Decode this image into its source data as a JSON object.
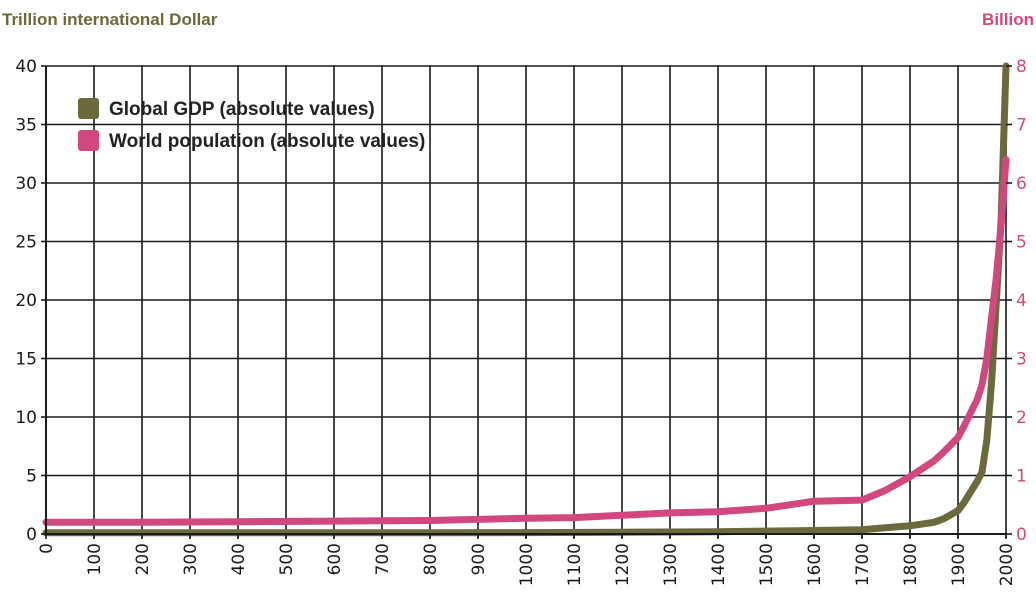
{
  "chart_data": {
    "type": "line",
    "y_left_label": "Trillion international Dollar",
    "y_right_label": "Billion",
    "x": [
      0,
      100,
      200,
      300,
      400,
      500,
      600,
      700,
      800,
      900,
      1000,
      1100,
      1200,
      1300,
      1400,
      1500,
      1600,
      1700,
      1800,
      1900,
      2000
    ],
    "x_tick_labels": [
      "0",
      "100",
      "200",
      "300",
      "400",
      "500",
      "600",
      "700",
      "800",
      "900",
      "1000",
      "1100",
      "1200",
      "1300",
      "1400",
      "1500",
      "1600",
      "1700",
      "1800",
      "1900",
      "2000"
    ],
    "y_left_ticks": [
      "0",
      "5",
      "10",
      "15",
      "20",
      "25",
      "30",
      "35",
      "40"
    ],
    "y_right_ticks": [
      "0",
      "1",
      "2",
      "3",
      "4",
      "5",
      "6",
      "7",
      "8"
    ],
    "ylim_left": [
      0,
      40
    ],
    "ylim_right": [
      0,
      8
    ],
    "xlim": [
      0,
      2000
    ],
    "grid": true,
    "legend_position": "top-left",
    "series": [
      {
        "name": "Global GDP (absolute values)",
        "axis": "left",
        "color": "#6b6a3c",
        "points": [
          [
            0,
            0.1
          ],
          [
            200,
            0.1
          ],
          [
            400,
            0.1
          ],
          [
            600,
            0.1
          ],
          [
            800,
            0.1
          ],
          [
            1000,
            0.12
          ],
          [
            1200,
            0.15
          ],
          [
            1300,
            0.17
          ],
          [
            1400,
            0.2
          ],
          [
            1500,
            0.25
          ],
          [
            1600,
            0.3
          ],
          [
            1700,
            0.37
          ],
          [
            1800,
            0.7
          ],
          [
            1850,
            1.0
          ],
          [
            1870,
            1.3
          ],
          [
            1900,
            2.0
          ],
          [
            1913,
            2.7
          ],
          [
            1940,
            4.5
          ],
          [
            1950,
            5.3
          ],
          [
            1960,
            8.0
          ],
          [
            1970,
            13.0
          ],
          [
            1980,
            20.0
          ],
          [
            1990,
            27.0
          ],
          [
            2000,
            40.0
          ]
        ]
      },
      {
        "name": "World population (absolute values)",
        "axis": "right",
        "color": "#d1487e",
        "points": [
          [
            0,
            0.2
          ],
          [
            200,
            0.2
          ],
          [
            400,
            0.21
          ],
          [
            600,
            0.22
          ],
          [
            800,
            0.23
          ],
          [
            1000,
            0.27
          ],
          [
            1100,
            0.28
          ],
          [
            1200,
            0.32
          ],
          [
            1300,
            0.36
          ],
          [
            1400,
            0.38
          ],
          [
            1500,
            0.44
          ],
          [
            1600,
            0.56
          ],
          [
            1700,
            0.58
          ],
          [
            1750,
            0.75
          ],
          [
            1800,
            0.98
          ],
          [
            1850,
            1.25
          ],
          [
            1870,
            1.4
          ],
          [
            1900,
            1.65
          ],
          [
            1913,
            1.85
          ],
          [
            1940,
            2.3
          ],
          [
            1950,
            2.55
          ],
          [
            1960,
            3.0
          ],
          [
            1970,
            3.7
          ],
          [
            1980,
            4.4
          ],
          [
            1990,
            5.3
          ],
          [
            2000,
            6.4
          ]
        ]
      }
    ]
  }
}
